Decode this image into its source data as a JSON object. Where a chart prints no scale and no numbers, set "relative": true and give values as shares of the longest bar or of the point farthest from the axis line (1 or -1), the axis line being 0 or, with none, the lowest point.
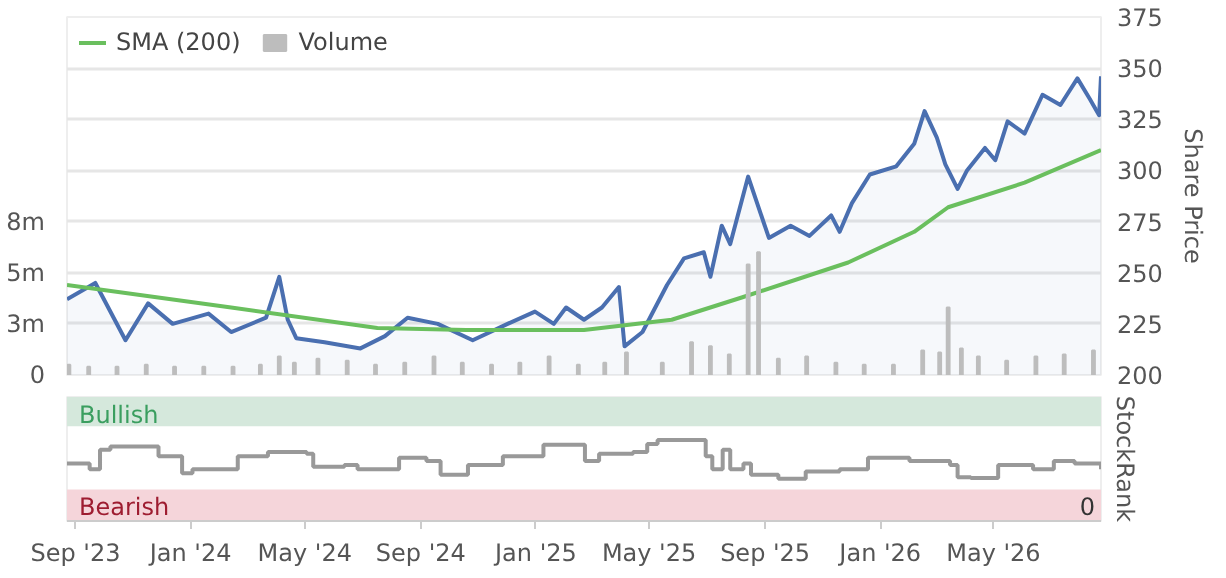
{
  "chart_data": [
    {
      "type": "line",
      "ylabel": "Share Price",
      "xlim": [
        "2023-08-23",
        "2026-08-23"
      ],
      "ylim": [
        200,
        375
      ],
      "yticks": [
        200,
        225,
        250,
        275,
        300,
        325,
        350,
        375
      ],
      "y2lim": [
        0,
        17500000
      ],
      "y2ticks": [
        {
          "value": 0,
          "label": "0"
        },
        {
          "value": 2500000,
          "label": "3m"
        },
        {
          "value": 5000000,
          "label": "5m"
        },
        {
          "value": 7500000,
          "label": "8m"
        }
      ],
      "grid": "y",
      "legend": "top left",
      "tick_labels": "y",
      "series": [
        {
          "type": "area",
          "color": "#4a6fb0",
          "x": [
            "2023-08-23",
            "2023-09-22",
            "2023-10-24",
            "2023-11-17",
            "2023-12-13",
            "2024-01-20",
            "2024-02-13",
            "2024-03-21",
            "2024-04-04",
            "2024-04-13",
            "2024-04-22",
            "2024-05-22",
            "2024-06-29",
            "2024-07-25",
            "2024-08-18",
            "2024-09-19",
            "2024-10-26",
            "2024-12-02",
            "2024-12-31",
            "2025-01-20",
            "2025-02-02",
            "2025-02-21",
            "2025-03-12",
            "2025-03-30",
            "2025-04-05",
            "2025-04-24",
            "2025-05-20",
            "2025-06-07",
            "2025-06-28",
            "2025-07-05",
            "2025-07-17",
            "2025-07-26",
            "2025-08-14",
            "2025-09-05",
            "2025-09-28",
            "2025-10-18",
            "2025-11-10",
            "2025-11-19",
            "2025-12-02",
            "2025-12-21",
            "2026-01-18",
            "2026-02-06",
            "2026-02-17",
            "2026-03-02",
            "2026-03-11",
            "2026-03-24",
            "2026-04-03",
            "2026-04-22",
            "2026-05-03",
            "2026-05-16",
            "2026-06-03",
            "2026-06-22",
            "2026-07-11",
            "2026-07-29",
            "2026-08-11",
            "2026-08-21",
            "2026-08-23"
          ],
          "values": [
            237,
            245,
            217,
            235,
            225,
            230,
            221,
            228,
            248,
            227,
            218,
            216,
            213,
            219,
            228,
            225,
            217,
            225,
            231,
            225,
            233,
            227,
            233,
            243,
            214,
            221,
            244,
            257,
            260,
            248,
            273,
            264,
            297,
            267,
            273,
            268,
            278,
            270,
            284,
            298,
            302,
            313,
            329,
            316,
            303,
            291,
            300,
            311,
            305,
            324,
            318,
            337,
            332,
            345,
            335,
            327,
            346
          ]
        },
        {
          "type": "line",
          "name": "SMA (200)",
          "color": "#6abf5e",
          "x": [
            "2023-08-23",
            "2024-02-13",
            "2024-07-17",
            "2024-10-19",
            "2025-02-21",
            "2025-05-25",
            "2025-08-08",
            "2025-11-28",
            "2026-02-06",
            "2026-03-14",
            "2026-06-03",
            "2026-08-23"
          ],
          "values": [
            244,
            233,
            223,
            222,
            222,
            227,
            238,
            255,
            270,
            282,
            294,
            310
          ]
        },
        {
          "type": "bar",
          "name": "Volume",
          "axis": "y2",
          "color": "#bdbdbd",
          "x": [
            "2023-08-25",
            "2023-09-15",
            "2023-10-15",
            "2023-11-15",
            "2023-12-15",
            "2024-01-15",
            "2024-02-15",
            "2024-03-15",
            "2024-04-04",
            "2024-04-20",
            "2024-05-15",
            "2024-06-15",
            "2024-07-15",
            "2024-08-15",
            "2024-09-15",
            "2024-10-15",
            "2024-11-15",
            "2024-12-15",
            "2025-01-15",
            "2025-02-15",
            "2025-03-15",
            "2025-04-07",
            "2025-05-15",
            "2025-06-15",
            "2025-07-05",
            "2025-07-25",
            "2025-08-14",
            "2025-08-25",
            "2025-09-15",
            "2025-10-15",
            "2025-11-15",
            "2025-12-15",
            "2026-01-15",
            "2026-02-15",
            "2026-03-05",
            "2026-03-14",
            "2026-03-28",
            "2026-04-15",
            "2026-05-15",
            "2026-06-15",
            "2026-07-15",
            "2026-08-15"
          ],
          "values": [
            500000,
            400000,
            400000,
            500000,
            400000,
            400000,
            400000,
            500000,
            900000,
            600000,
            800000,
            700000,
            500000,
            600000,
            900000,
            600000,
            500000,
            600000,
            900000,
            500000,
            600000,
            1100000,
            600000,
            1600000,
            1400000,
            1000000,
            5400000,
            6000000,
            800000,
            900000,
            600000,
            500000,
            500000,
            1200000,
            1100000,
            3300000,
            1300000,
            900000,
            700000,
            900000,
            1000000,
            1200000
          ]
        }
      ]
    },
    {
      "type": "step",
      "relative": true,
      "ylabel": "StockRank",
      "xlim": [
        "2023-08-23",
        "2026-08-23"
      ],
      "xticks": [
        {
          "value": "2023-09-01",
          "label": "Sep '23"
        },
        {
          "value": "2024-01-01",
          "label": "Jan '24"
        },
        {
          "value": "2024-05-01",
          "label": "May '24"
        },
        {
          "value": "2024-09-01",
          "label": "Sep '24"
        },
        {
          "value": "2025-01-01",
          "label": "Jan '25"
        },
        {
          "value": "2025-05-01",
          "label": "May '25"
        },
        {
          "value": "2025-09-01",
          "label": "Sep '25"
        },
        {
          "value": "2026-01-01",
          "label": "Jan '26"
        },
        {
          "value": "2026-05-01",
          "label": "May '26"
        }
      ],
      "tick_labels": "x",
      "annotations": [
        "0"
      ],
      "bands": [
        {
          "axis": "y",
          "from": 1.17,
          "to": 1.53,
          "label": "Bullish",
          "color": "#d5e8dc"
        },
        {
          "axis": "y",
          "from": 0,
          "to": 0.39,
          "label": "Bearish",
          "color": "#f5d5da"
        }
      ],
      "series": [
        {
          "color": "#999999",
          "x": [
            "2023-08-23",
            "2023-09-16",
            "2023-09-27",
            "2023-10-08",
            "2023-11-20",
            "2023-11-28",
            "2023-12-23",
            "2024-01-03",
            "2024-02-16",
            "2024-02-20",
            "2024-03-16",
            "2024-03-23",
            "2024-05-03",
            "2024-05-10",
            "2024-06-12",
            "2024-06-26",
            "2024-08-09",
            "2024-09-07",
            "2024-09-22",
            "2024-10-21",
            "2024-11-27",
            "2025-01-02",
            "2025-01-09",
            "2025-02-15",
            "2025-02-22",
            "2025-03-09",
            "2025-04-14",
            "2025-04-29",
            "2025-05-10",
            "2025-06-05",
            "2025-06-30",
            "2025-07-07",
            "2025-07-18",
            "2025-07-26",
            "2025-08-09",
            "2025-08-17",
            "2025-09-15",
            "2025-10-14",
            "2025-11-19",
            "2025-12-19",
            "2026-02-01",
            "2026-03-16",
            "2026-03-24",
            "2026-04-07",
            "2026-05-06",
            "2026-06-12",
            "2026-07-04",
            "2026-07-26",
            "2026-08-23"
          ],
          "values": [
            0.71,
            0.64,
            0.88,
            0.92,
            0.92,
            0.8,
            0.59,
            0.64,
            0.64,
            0.8,
            0.8,
            0.85,
            0.83,
            0.67,
            0.69,
            0.64,
            0.78,
            0.74,
            0.57,
            0.69,
            0.8,
            0.8,
            0.94,
            0.94,
            0.74,
            0.83,
            0.85,
            0.95,
            1.0,
            1.0,
            0.8,
            0.64,
            0.88,
            0.64,
            0.71,
            0.57,
            0.52,
            0.61,
            0.64,
            0.78,
            0.74,
            0.69,
            0.54,
            0.53,
            0.69,
            0.64,
            0.74,
            0.71,
            0.64
          ]
        }
      ]
    }
  ]
}
